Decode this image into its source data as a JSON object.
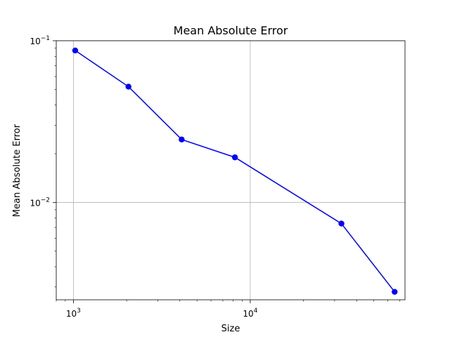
{
  "chart_data": {
    "type": "line",
    "title": "Mean Absolute Error",
    "xlabel": "Size",
    "ylabel": "Mean Absolute Error",
    "xscale": "log",
    "yscale": "log",
    "xlim": [
      800,
      75000
    ],
    "ylim": [
      0.0025,
      0.1
    ],
    "grid": true,
    "x_ticks": [
      {
        "value": 1000,
        "base": "10",
        "exp": "3"
      },
      {
        "value": 10000,
        "base": "10",
        "exp": "4"
      }
    ],
    "y_ticks": [
      {
        "value": 0.01,
        "base": "10",
        "exp": "−2"
      },
      {
        "value": 0.1,
        "base": "10",
        "exp": "−1"
      }
    ],
    "series": [
      {
        "color": "#0000ff",
        "marker": "circle",
        "x": [
          1024,
          2048,
          4096,
          8192,
          32768,
          65536
        ],
        "y": [
          0.087,
          0.052,
          0.0245,
          0.019,
          0.0074,
          0.0028
        ]
      }
    ]
  }
}
